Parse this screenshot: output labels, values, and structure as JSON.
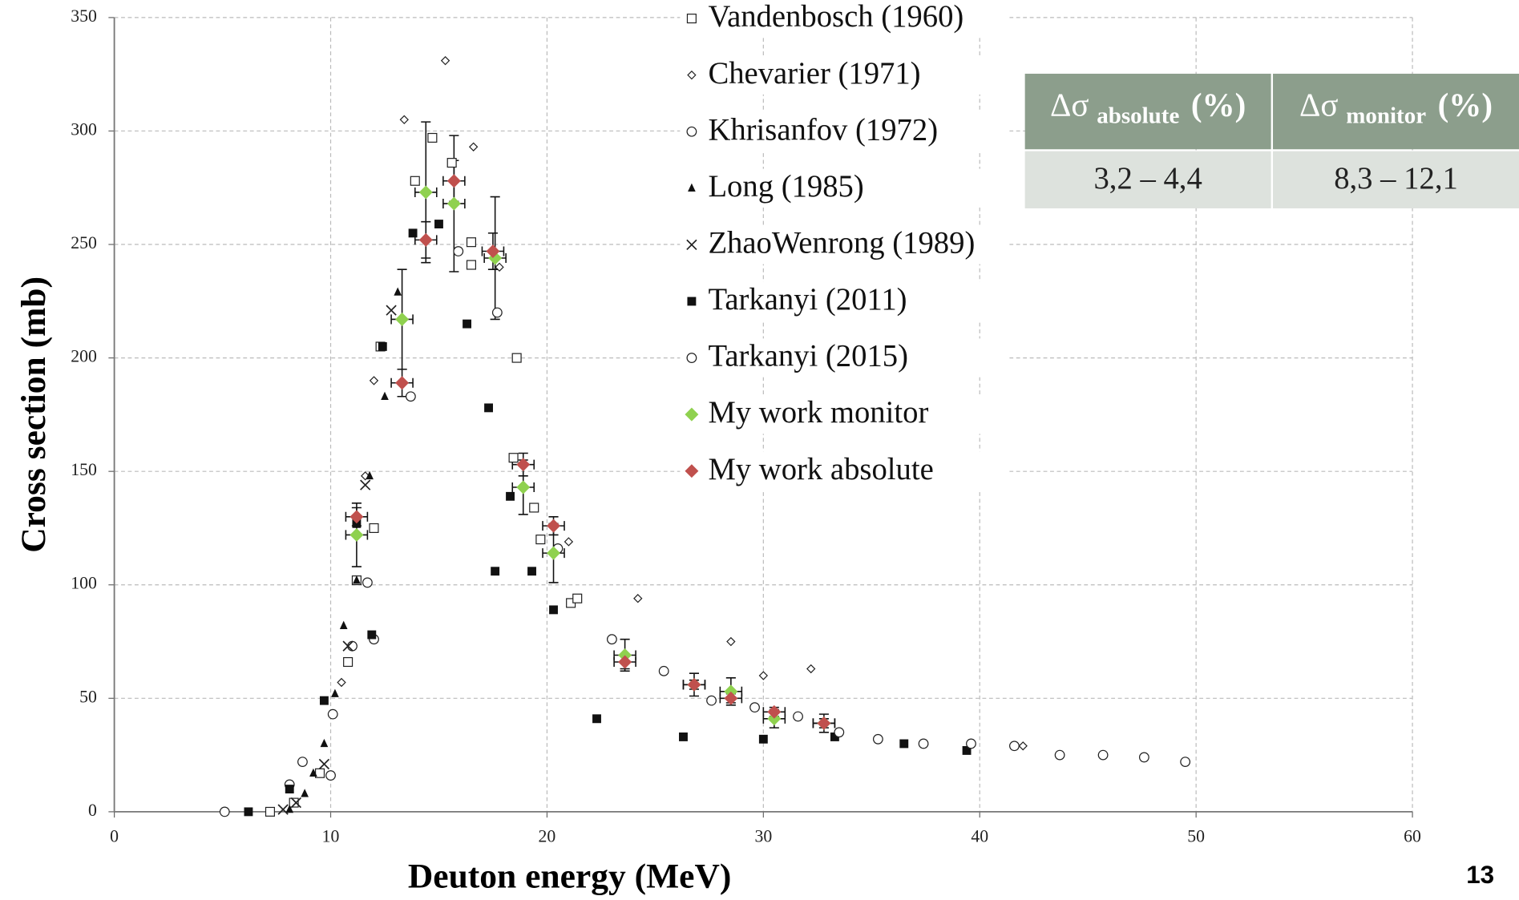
{
  "chart_data": {
    "type": "scatter",
    "xlabel": "Deuton energy (MeV)",
    "ylabel": "Cross section (mb)",
    "xlim": [
      0,
      60
    ],
    "ylim": [
      0,
      350
    ],
    "xticks": [
      0,
      10,
      20,
      30,
      40,
      50,
      60
    ],
    "yticks": [
      0,
      50,
      100,
      150,
      200,
      250,
      300,
      350
    ],
    "grid": true,
    "series": [
      {
        "name": "Vandenbosch (1960)",
        "marker": "square-open",
        "color": "#222222",
        "x": [
          7.2,
          8.3,
          9.5,
          10.8,
          11.2,
          12.0,
          12.3,
          13.9,
          14.7,
          15.6,
          16.5,
          16.5,
          18.6,
          18.45,
          19.4,
          19.7,
          21.1,
          21.4
        ],
        "values": [
          0,
          4,
          17,
          66,
          102,
          125,
          205,
          278,
          297,
          286,
          251,
          241,
          200,
          156,
          134,
          120,
          92,
          94
        ]
      },
      {
        "name": "Chevarier (1971)",
        "marker": "diamond-open",
        "color": "#222222",
        "x": [
          15.3,
          13.4,
          16.6,
          17.8,
          12.0,
          11.6,
          10.5,
          21.0,
          24.2,
          28.5,
          30.0,
          32.2,
          42.0
        ],
        "values": [
          331,
          305,
          293,
          240,
          190,
          148,
          57,
          119,
          94,
          75,
          60,
          63,
          29
        ]
      },
      {
        "name": "Khrisanfov (1972)",
        "marker": "circle-open",
        "color": "#222222",
        "x": [
          5.1,
          8.1,
          8.7,
          10.0,
          10.1,
          11.0,
          11.7,
          12.0,
          13.7,
          15.9,
          17.7
        ],
        "values": [
          0,
          12,
          22,
          16,
          43,
          73,
          101,
          76,
          183,
          247,
          220
        ]
      },
      {
        "name": "Long (1985)",
        "marker": "triangle",
        "color": "#111111",
        "x": [
          8.1,
          8.8,
          9.2,
          9.7,
          10.2,
          10.6,
          11.2,
          11.8,
          12.5,
          13.1
        ],
        "values": [
          1,
          8,
          17,
          30,
          52,
          82,
          102,
          148,
          183,
          229
        ]
      },
      {
        "name": "ZhaoWenrong (1989)",
        "marker": "x",
        "color": "#222222",
        "x": [
          7.8,
          8.4,
          9.7,
          10.8,
          11.6,
          12.8
        ],
        "values": [
          1,
          4,
          21,
          73,
          144,
          221
        ]
      },
      {
        "name": "Tarkanyi (2011)",
        "marker": "square",
        "color": "#111111",
        "x": [
          6.2,
          8.1,
          9.7,
          11.9,
          11.2,
          12.4,
          13.8,
          15.0,
          16.3,
          17.3,
          17.6,
          18.3,
          19.3,
          20.3,
          22.3,
          26.3,
          30.0,
          33.3,
          36.5,
          39.4
        ],
        "values": [
          0,
          10,
          49,
          78,
          127,
          205,
          255,
          259,
          215,
          178,
          106,
          139,
          106,
          89,
          41,
          33,
          32,
          33,
          30,
          27
        ]
      },
      {
        "name": "Tarkanyi (2015)",
        "marker": "circle-open",
        "color": "#222222",
        "x": [
          20.5,
          23.0,
          25.4,
          27.6,
          29.6,
          31.6,
          33.5,
          35.3,
          37.4,
          39.6,
          41.6,
          43.7,
          45.7,
          47.6,
          49.5
        ],
        "values": [
          116,
          76,
          62,
          49,
          46,
          42,
          35,
          32,
          30,
          30,
          29,
          25,
          25,
          24,
          22
        ]
      },
      {
        "name": "My work monitor",
        "marker": "diamond",
        "color": "#8fd14f",
        "x": [
          11.2,
          13.3,
          14.4,
          15.7,
          17.6,
          18.9,
          20.3,
          23.6,
          26.8,
          28.5,
          30.5,
          32.8
        ],
        "values": [
          122,
          217,
          273,
          268,
          244,
          143,
          114,
          69,
          56,
          53,
          41,
          39
        ],
        "yerr": [
          14,
          22,
          31,
          30,
          27,
          12,
          13,
          7,
          5,
          6,
          4,
          4
        ],
        "xerr": [
          0.5,
          0.5,
          0.5,
          0.5,
          0.5,
          0.5,
          0.5,
          0.5,
          0.5,
          0.5,
          0.5,
          0.5
        ]
      },
      {
        "name": "My work absolute",
        "marker": "diamond",
        "color": "#c0504d",
        "x": [
          11.2,
          13.3,
          14.4,
          15.7,
          17.5,
          18.9,
          20.3,
          23.6,
          26.8,
          28.5,
          30.5,
          32.8
        ],
        "values": [
          130,
          189,
          252,
          278,
          247,
          153,
          126,
          66,
          56,
          50,
          44,
          39
        ],
        "yerr": [
          4,
          6,
          8,
          9,
          8,
          5,
          4,
          3,
          2,
          2,
          2,
          2
        ],
        "xerr": [
          0.5,
          0.5,
          0.5,
          0.5,
          0.5,
          0.5,
          0.5,
          0.5,
          0.5,
          0.5,
          0.5,
          0.5
        ]
      }
    ]
  },
  "table": {
    "headers": [
      {
        "symbol": "Δσ",
        "subscript": "absolute",
        "unit": "(%)"
      },
      {
        "symbol": "Δσ",
        "subscript": "monitor",
        "unit": "(%)"
      }
    ],
    "rows": [
      [
        "3,2 – 4,4",
        "8,3 – 12,1"
      ]
    ]
  },
  "page_number": "13"
}
